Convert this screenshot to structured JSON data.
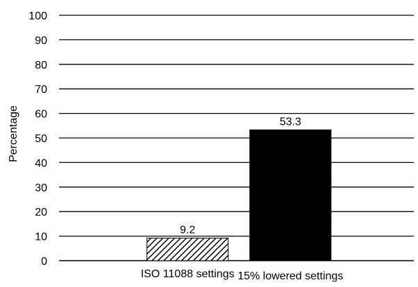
{
  "chart_data": {
    "type": "bar",
    "title": "",
    "xlabel": "",
    "ylabel": "Percentage",
    "ylim": [
      0,
      100
    ],
    "yticks": [
      0,
      10,
      20,
      30,
      40,
      50,
      60,
      70,
      80,
      90,
      100
    ],
    "categories": [
      "ISO 11088 settings",
      "15% lowered settings"
    ],
    "values": [
      9.2,
      53.3
    ],
    "data_labels": [
      "9.2",
      "53.3"
    ],
    "bar_fills": [
      "hatched",
      "solid-black"
    ],
    "grid": "horizontal",
    "legend": "none",
    "colors": {
      "bar_solid": "#000000",
      "hatch": "#000000",
      "grid": "#000000"
    }
  }
}
